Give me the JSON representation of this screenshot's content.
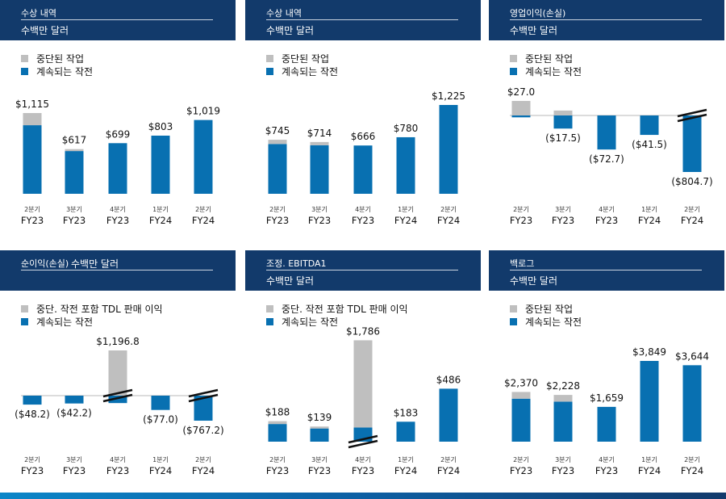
{
  "colors": {
    "header": "#123a6b",
    "continuing": "#0870b1",
    "discontinued": "#bfbfbf"
  },
  "legend": {
    "discontinued": "중단된 작업",
    "continuing": "계속되는 작전",
    "discontinued_tdl": "중단. 작전 포함 TDL 판매 이익"
  },
  "unit": "수백만 달러",
  "periods": [
    {
      "quarter": "2분기",
      "fy": "FY23"
    },
    {
      "quarter": "3분기",
      "fy": "FY23"
    },
    {
      "quarter": "4분기",
      "fy": "FY23"
    },
    {
      "quarter": "1분기",
      "fy": "FY24"
    },
    {
      "quarter": "2분기",
      "fy": "FY24"
    }
  ],
  "panels": [
    {
      "title": "수상 내역",
      "unit": "수백만 달러",
      "legend_top": "중단된 작업",
      "legend_bottom": "계속되는 작전"
    },
    {
      "title": "수상 내역",
      "unit": "수백만 달러",
      "legend_top": "중단된 작업",
      "legend_bottom": "계속되는 작전"
    },
    {
      "title": "영업이익(손실)",
      "unit": "수백만 달러",
      "legend_top": "중단된 작업",
      "legend_bottom": "계속되는 작전"
    },
    {
      "title": "순이익(손실)",
      "unit": "수백만 달러",
      "legend_top": "중단. 작전 포함 TDL 판매 이익",
      "legend_bottom": "계속되는 작전"
    },
    {
      "title": "조정. EBITDA1",
      "unit": "수백만 달러",
      "legend_top": "중단. 작전 포함 TDL 판매 이익",
      "legend_bottom": "계속되는 작전"
    },
    {
      "title": "백로그",
      "unit": "수백만 달러",
      "legend_top": "중단된 작업",
      "legend_bottom": "계속되는 작전"
    }
  ],
  "chart_data": [
    {
      "type": "bar",
      "stacked": true,
      "title": "수상 내역",
      "categories": [
        "2분기 FY23",
        "3분기 FY23",
        "4분기 FY23",
        "1분기 FY24",
        "2분기 FY24"
      ],
      "series": [
        {
          "name": "계속되는 작전",
          "values": [
            947,
            590,
            699,
            803,
            1019
          ]
        },
        {
          "name": "중단된 작업",
          "values": [
            168,
            27,
            0,
            0,
            0
          ]
        }
      ],
      "totals": [
        1115,
        617,
        699,
        803,
        1019
      ],
      "labels": [
        "$1,115",
        "$617",
        "$699",
        "$803",
        "$1,019"
      ],
      "ylim": [
        0,
        1300
      ],
      "grid": false,
      "legend_position": "top-left"
    },
    {
      "type": "bar",
      "stacked": true,
      "title": "수상 내역",
      "categories": [
        "2분기 FY23",
        "3분기 FY23",
        "4분기 FY23",
        "1분기 FY24",
        "2분기 FY24"
      ],
      "series": [
        {
          "name": "계속되는 작전",
          "values": [
            687,
            670,
            666,
            780,
            1225
          ]
        },
        {
          "name": "중단된 작업",
          "values": [
            58,
            44,
            0,
            0,
            0
          ]
        }
      ],
      "totals": [
        745,
        714,
        666,
        780,
        1225
      ],
      "labels": [
        "$745",
        "$714",
        "$666",
        "$780",
        "$1,225"
      ],
      "ylim": [
        0,
        1300
      ],
      "grid": false,
      "legend_position": "top-left"
    },
    {
      "type": "bar",
      "stacked": true,
      "title": "영업이익(손실)",
      "categories": [
        "2분기 FY23",
        "3분기 FY23",
        "4분기 FY23",
        "1분기 FY24",
        "2분기 FY24"
      ],
      "series": [
        {
          "name": "계속되는 작전",
          "values": [
            -4,
            -28,
            -72.7,
            -41.5,
            -804.7
          ]
        },
        {
          "name": "중단된 작업",
          "values": [
            31,
            10.5,
            0,
            0,
            0
          ]
        }
      ],
      "totals": [
        27.0,
        -17.5,
        -72.7,
        -41.5,
        -804.7
      ],
      "labels": [
        "$27.0",
        "($17.5)",
        "($72.7)",
        "($41.5)",
        "($804.7)"
      ],
      "axis_break": [
        4
      ],
      "grid": false,
      "legend_position": "top-left"
    },
    {
      "type": "bar",
      "stacked": true,
      "title": "순이익(손실)",
      "categories": [
        "2분기 FY23",
        "3분기 FY23",
        "4분기 FY23",
        "1분기 FY24",
        "2분기 FY24"
      ],
      "series": [
        {
          "name": "계속되는 작전",
          "values": [
            -48.2,
            -42.2,
            -40,
            -77.0,
            -767.2
          ]
        },
        {
          "name": "중단. 작전 포함 TDL 판매 이익",
          "values": [
            0,
            0,
            1236.8,
            0,
            0
          ]
        }
      ],
      "totals": [
        -48.2,
        -42.2,
        1196.8,
        -77.0,
        -767.2
      ],
      "labels": [
        "($48.2)",
        "($42.2)",
        "$1,196.8",
        "($77.0)",
        "($767.2)"
      ],
      "axis_break": [
        2,
        4
      ],
      "grid": false,
      "legend_position": "top-left"
    },
    {
      "type": "bar",
      "stacked": true,
      "title": "조정. EBITDA1",
      "categories": [
        "2분기 FY23",
        "3분기 FY23",
        "4분기 FY23",
        "1분기 FY24",
        "2분기 FY24"
      ],
      "series": [
        {
          "name": "계속되는 작전",
          "values": [
            162,
            121,
            130,
            183,
            486
          ]
        },
        {
          "name": "중단. 작전 포함 TDL 판매 이익",
          "values": [
            26,
            18,
            1656,
            0,
            0
          ]
        }
      ],
      "totals": [
        188,
        139,
        1786,
        183,
        486
      ],
      "labels": [
        "$188",
        "$139",
        "$1,786",
        "$183",
        "$486"
      ],
      "axis_break": [
        2
      ],
      "grid": false,
      "legend_position": "top-left"
    },
    {
      "type": "bar",
      "stacked": true,
      "title": "백로그",
      "categories": [
        "2분기 FY23",
        "3분기 FY23",
        "4분기 FY23",
        "1분기 FY24",
        "2분기 FY24"
      ],
      "series": [
        {
          "name": "계속되는 작전",
          "values": [
            2050,
            1910,
            1659,
            3849,
            3644
          ]
        },
        {
          "name": "중단된 작업",
          "values": [
            320,
            318,
            0,
            0,
            0
          ]
        }
      ],
      "totals": [
        2370,
        2228,
        1659,
        3849,
        3644
      ],
      "labels": [
        "$2,370",
        "$2,228",
        "$1,659",
        "$3,849",
        "$3,644"
      ],
      "ylim": [
        0,
        4100
      ],
      "grid": false,
      "legend_position": "top-left"
    }
  ]
}
